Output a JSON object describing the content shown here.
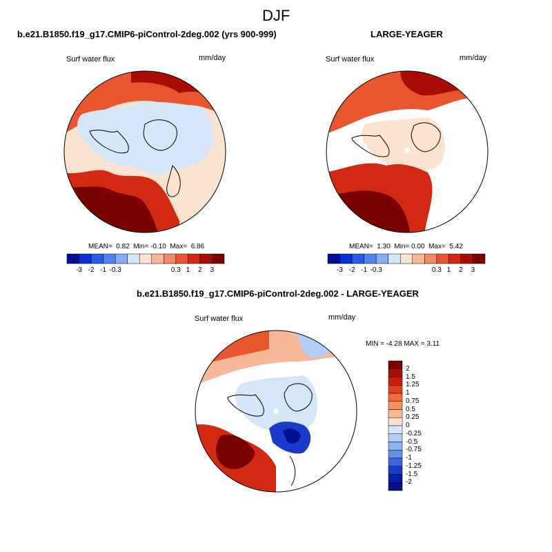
{
  "page": {
    "title": "DJF"
  },
  "panels": [
    {
      "id": "case",
      "heading": "b.e21.B1850.f19_g17.CMIP6-piControl-2deg.002 (yrs 900-999)",
      "variable": "Surf water flux",
      "units": "mm/day",
      "stats": {
        "mean_label": "MEAN=",
        "mean": "0.82",
        "min_label": "Min=",
        "min": "-0.10",
        "max_label": "Max=",
        "max": "6.86"
      },
      "colorbar": {
        "tick_labels": [
          "-3",
          "-2",
          "-1",
          "-0.3",
          "0.3",
          "1",
          "2",
          "3"
        ],
        "colors": [
          "#00108f",
          "#0d2fd6",
          "#2a5ae8",
          "#5283f0",
          "#86aef5",
          "#d5e6f8",
          "#fbe3d2",
          "#f6b898",
          "#f08a66",
          "#e8552e",
          "#d22a12",
          "#a80d05",
          "#7a0000"
        ]
      }
    },
    {
      "id": "obs",
      "heading": "LARGE-YEAGER",
      "variable": "Surf water flux",
      "units": "mm/day",
      "stats": {
        "mean_label": "MEAN=",
        "mean": "1.30",
        "min_label": "Min=",
        "min": "0.00",
        "max_label": "Max=",
        "max": "5.42"
      },
      "colorbar": {
        "tick_labels": [
          "-3",
          "-2",
          "-1",
          "-0.3",
          "0.3",
          "1",
          "2",
          "3"
        ],
        "colors": [
          "#00108f",
          "#0d2fd6",
          "#2a5ae8",
          "#5283f0",
          "#86aef5",
          "#d5e6f8",
          "#fbe3d2",
          "#f6b898",
          "#f08a66",
          "#e8552e",
          "#d22a12",
          "#a80d05",
          "#7a0000"
        ]
      }
    },
    {
      "id": "diff",
      "heading": "b.e21.B1850.f19_g17.CMIP6-piControl-2deg.002 - LARGE-YEAGER",
      "variable": "Surf water flux",
      "units": "mm/day",
      "stats_text": "MIN = -4.28 MAX =  3.11",
      "colorbar": {
        "tick_labels": [
          "2",
          "1.5",
          "1.25",
          "1",
          "0.75",
          "0.5",
          "0.25",
          "0",
          "-0.25",
          "-0.5",
          "-0.75",
          "-1",
          "-1.25",
          "-1.5",
          "-2"
        ],
        "colors": [
          "#7a0000",
          "#a80d05",
          "#c81e0e",
          "#e0401e",
          "#f06a3c",
          "#f5915f",
          "#f8b895",
          "#fce0cc",
          "#d5e6f8",
          "#b3cef4",
          "#8cb2f0",
          "#6690e8",
          "#3f63df",
          "#1a3acb",
          "#0a1fa8",
          "#00108f"
        ]
      }
    }
  ],
  "colors": {
    "land_outline": "#000000",
    "frame": "#000000"
  }
}
